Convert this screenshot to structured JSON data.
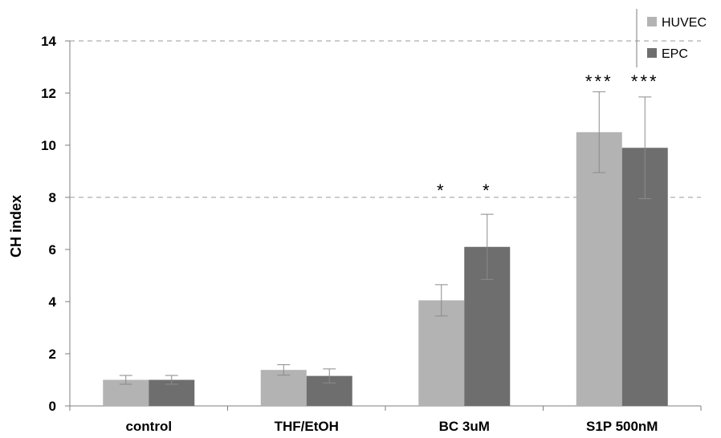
{
  "chart_data": {
    "type": "bar",
    "ylabel": "CH index",
    "xlabel": "",
    "ylim": [
      0,
      14
    ],
    "yticks": [
      "0",
      "2",
      "4",
      "6",
      "8",
      "10",
      "12",
      "14"
    ],
    "gridlines_at": [
      8,
      14
    ],
    "categories": [
      "control",
      "THF/EtOH",
      "BC 3uM",
      "S1P 500nM"
    ],
    "series": [
      {
        "name": "HUVEC",
        "color": "#b3b3b3",
        "values": [
          1.0,
          1.38,
          4.05,
          10.5
        ],
        "errors": [
          0.17,
          0.2,
          0.6,
          1.55
        ],
        "significance": [
          "",
          "",
          "*",
          "***"
        ]
      },
      {
        "name": "EPC",
        "color": "#6e6e6e",
        "values": [
          1.0,
          1.15,
          6.1,
          9.9
        ],
        "errors": [
          0.17,
          0.27,
          1.25,
          1.95
        ],
        "significance": [
          "",
          "",
          "*",
          "***"
        ]
      }
    ],
    "legend_position": "top-right",
    "grid": "dashed, partial"
  }
}
